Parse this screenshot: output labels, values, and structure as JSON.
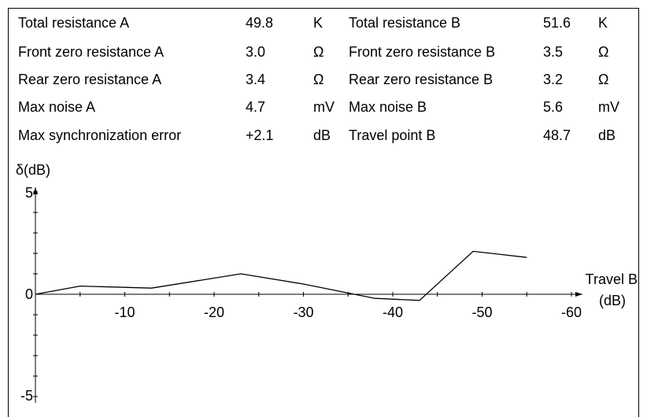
{
  "params": {
    "left": [
      {
        "label": "Total resistance A",
        "value": "49.8",
        "unit": "K"
      },
      {
        "label": "Front zero resistance A",
        "value": "3.0",
        "unit": "Ω"
      },
      {
        "label": "Rear zero resistance A",
        "value": "3.4",
        "unit": "Ω"
      },
      {
        "label": "Max noise A",
        "value": "4.7",
        "unit": "mV"
      },
      {
        "label": "Max synchronization error",
        "value": "+2.1",
        "unit": "dB"
      }
    ],
    "right": [
      {
        "label": "Total resistance B",
        "value": "51.6",
        "unit": "K"
      },
      {
        "label": "Front zero resistance B",
        "value": "3.5",
        "unit": "Ω"
      },
      {
        "label": "Rear zero resistance B",
        "value": "3.2",
        "unit": "Ω"
      },
      {
        "label": "Max noise B",
        "value": "5.6",
        "unit": "mV"
      },
      {
        "label": "Travel point B",
        "value": "48.7",
        "unit": "dB"
      }
    ]
  },
  "chart_data": {
    "type": "line",
    "ylabel": "δ(dB)",
    "xlabel_line1": "Travel B",
    "xlabel_line2": "(dB)",
    "xlim": [
      0,
      -60
    ],
    "ylim": [
      -5,
      5
    ],
    "x_ticks": [
      -10,
      -20,
      -30,
      -40,
      -50,
      -60
    ],
    "y_ticks": [
      5,
      0,
      -5
    ],
    "grid": false,
    "series": [
      {
        "x": [
          0,
          -5,
          -13,
          -23,
          -30,
          -38,
          -43,
          -49,
          -55
        ],
        "y": [
          0,
          0.4,
          0.3,
          1.0,
          0.5,
          -0.2,
          -0.3,
          2.1,
          1.8
        ],
        "color": "#000000"
      }
    ]
  }
}
